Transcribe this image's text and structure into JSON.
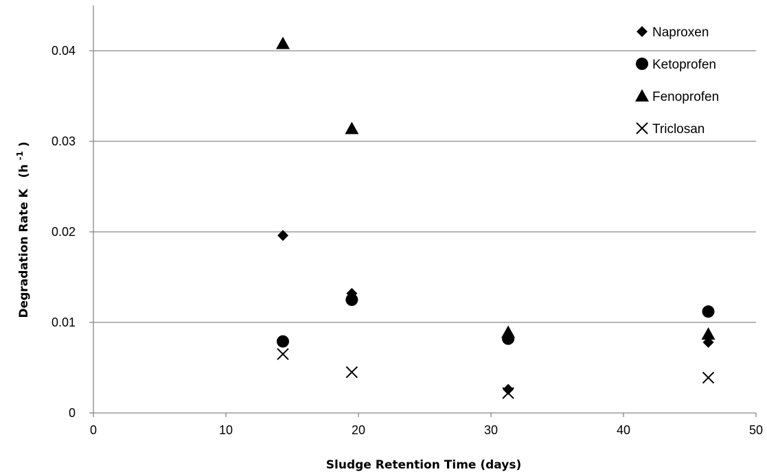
{
  "chart_data": {
    "type": "scatter",
    "xlabel": "Sludge Retention Time (days)",
    "ylabel": "Degradation Rate K",
    "ylabel_unit_base": "(h",
    "ylabel_unit_sup": "-1",
    "ylabel_unit_close": ")",
    "xlim": [
      0,
      50
    ],
    "ylim": [
      0,
      0.045
    ],
    "x_ticks": [
      0,
      10,
      20,
      30,
      40,
      50
    ],
    "x_tick_labels": [
      "0",
      "10",
      "20",
      "30",
      "40",
      "50"
    ],
    "y_ticks": [
      0,
      0.01,
      0.02,
      0.03,
      0.04
    ],
    "y_tick_labels": [
      "0",
      "0.01",
      "0.02",
      "0.03",
      "0.04"
    ],
    "grid": "horizontal",
    "legend_position": "top-right",
    "series": [
      {
        "name": "Naproxen",
        "marker": "diamond",
        "color": "#000000",
        "x": [
          14.3,
          19.5,
          31.3,
          46.4
        ],
        "y": [
          0.0196,
          0.0132,
          0.0026,
          0.0078
        ]
      },
      {
        "name": "Ketoprofen",
        "marker": "circle",
        "color": "#000000",
        "x": [
          14.3,
          19.5,
          31.3,
          46.4
        ],
        "y": [
          0.0079,
          0.0125,
          0.0082,
          0.0112
        ]
      },
      {
        "name": "Fenoprofen",
        "marker": "triangle",
        "color": "#000000",
        "x": [
          14.3,
          19.5,
          31.3,
          46.4
        ],
        "y": [
          0.0408,
          0.0314,
          0.0089,
          0.0087
        ]
      },
      {
        "name": "Triclosan",
        "marker": "cross",
        "color": "#000000",
        "x": [
          14.3,
          19.5,
          31.3,
          46.4
        ],
        "y": [
          0.0065,
          0.0045,
          0.0022,
          0.0039
        ]
      }
    ]
  }
}
